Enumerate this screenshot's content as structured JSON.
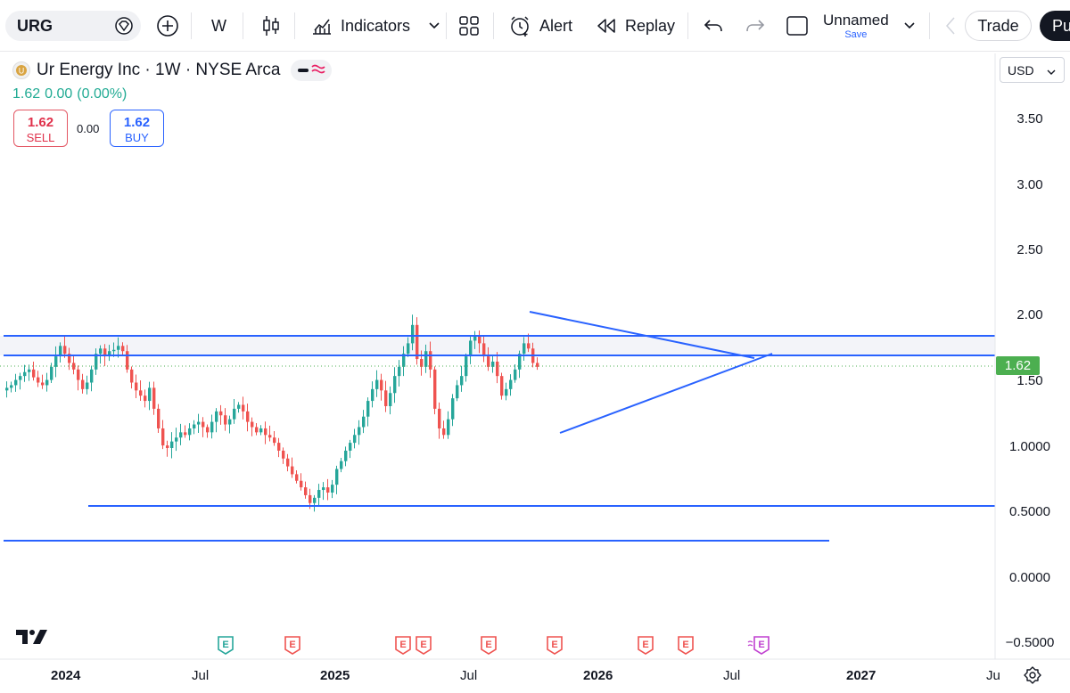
{
  "toolbar": {
    "symbol": "URG",
    "interval": "W",
    "indicators_label": "Indicators",
    "alert_label": "Alert",
    "replay_label": "Replay",
    "layout_name": "Unnamed",
    "save_label": "Save",
    "trade_label": "Trade",
    "publish_label": "Pu",
    "icons": [
      "add-symbol-icon",
      "candles-icon",
      "indicators-icon",
      "chevron-down-icon",
      "layouts-icon",
      "alert-clock-icon",
      "replay-icon",
      "undo-icon",
      "redo-icon",
      "layout-icon"
    ]
  },
  "legend": {
    "title": "Ur Energy Inc · 1W · NYSE Arca",
    "last": "1.62",
    "change": "0.00",
    "change_pct": "(0.00%)",
    "sell_price": "1.62",
    "sell_label": "SELL",
    "spread": "0.00",
    "buy_price": "1.62",
    "buy_label": "BUY"
  },
  "currency": "USD",
  "price_axis": [
    "3.50",
    "3.00",
    "2.50",
    "2.00",
    "1.50",
    "1.0000",
    "0.5000",
    "0.0000",
    "−0.5000"
  ],
  "current_price_label": "1.62",
  "time_axis": [
    {
      "label": "2024",
      "bold": true
    },
    {
      "label": "Jul",
      "bold": false
    },
    {
      "label": "2025",
      "bold": true
    },
    {
      "label": "Jul",
      "bold": false
    },
    {
      "label": "2026",
      "bold": true
    },
    {
      "label": "Jul",
      "bold": false
    },
    {
      "label": "2027",
      "bold": true
    },
    {
      "label": "Ju",
      "bold": false
    }
  ],
  "earnings_markers": [
    "E",
    "E",
    "E",
    "E",
    "E",
    "E",
    "E",
    "E",
    "E"
  ],
  "colors": {
    "up": "#26a69a",
    "down": "#ef5350",
    "drawing": "#2962ff",
    "current_price": "#4caf50",
    "sell": "#e0314b",
    "buy": "#2962ff"
  },
  "chart_data": {
    "type": "candlestick",
    "interval": "1W",
    "symbol": "URG",
    "currency": "USD",
    "ylim": [
      -0.5,
      3.5
    ],
    "x_range": [
      "2023-11",
      "2027-08"
    ],
    "series_close": [
      1.46,
      1.48,
      1.52,
      1.55,
      1.58,
      1.6,
      1.54,
      1.5,
      1.48,
      1.52,
      1.62,
      1.7,
      1.78,
      1.72,
      1.65,
      1.6,
      1.52,
      1.45,
      1.5,
      1.6,
      1.72,
      1.76,
      1.7,
      1.74,
      1.75,
      1.78,
      1.74,
      1.6,
      1.5,
      1.44,
      1.4,
      1.36,
      1.46,
      1.3,
      1.15,
      1.02,
      1.0,
      1.05,
      1.08,
      1.12,
      1.1,
      1.15,
      1.18,
      1.2,
      1.16,
      1.12,
      1.2,
      1.28,
      1.25,
      1.18,
      1.22,
      1.3,
      1.33,
      1.28,
      1.2,
      1.16,
      1.12,
      1.15,
      1.1,
      1.08,
      1.04,
      0.98,
      0.92,
      0.86,
      0.8,
      0.75,
      0.7,
      0.64,
      0.58,
      0.62,
      0.68,
      0.7,
      0.66,
      0.72,
      0.84,
      0.9,
      0.98,
      1.04,
      1.1,
      1.16,
      1.24,
      1.36,
      1.45,
      1.52,
      1.44,
      1.32,
      1.42,
      1.55,
      1.62,
      1.72,
      1.8,
      1.94,
      1.68,
      1.62,
      1.74,
      1.6,
      1.3,
      1.15,
      1.1,
      1.22,
      1.38,
      1.48,
      1.55,
      1.7,
      1.82,
      1.86,
      1.8,
      1.7,
      1.62,
      1.66,
      1.55,
      1.4,
      1.45,
      1.52,
      1.6,
      1.72,
      1.8,
      1.76,
      1.65,
      1.62
    ],
    "horizontal_levels": [
      1.85,
      1.7,
      0.55,
      0.28
    ],
    "triangle": {
      "upper": [
        [
          "2025-09",
          2.03
        ],
        [
          "2026-09",
          1.67
        ]
      ],
      "lower": [
        [
          "2025-11",
          1.1
        ],
        [
          "2026-09",
          1.7
        ]
      ]
    },
    "last_price": 1.62
  }
}
